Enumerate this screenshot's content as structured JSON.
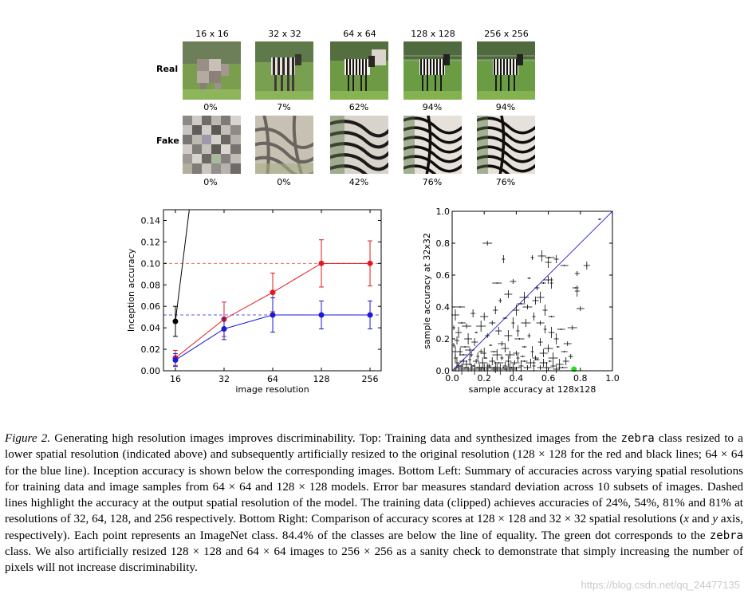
{
  "figure_top": {
    "columns": [
      "16 x 16",
      "32 x 32",
      "64 x 64",
      "128 x 128",
      "256 x 256"
    ],
    "rows": [
      {
        "label": "Real",
        "accuracies": [
          "0%",
          "7%",
          "62%",
          "94%",
          "94%"
        ]
      },
      {
        "label": "Fake",
        "accuracies": [
          "0%",
          "0%",
          "42%",
          "76%",
          "76%"
        ]
      }
    ]
  },
  "chart_data": [
    {
      "type": "line",
      "xlabel": "image resolution",
      "ylabel": "Inception accuracy",
      "x_ticks": [
        "16",
        "32",
        "64",
        "128",
        "256"
      ],
      "y_ticks": [
        "0.00",
        "0.02",
        "0.04",
        "0.06",
        "0.08",
        "0.10",
        "0.12",
        "0.14"
      ],
      "ylim": [
        0,
        0.15
      ],
      "x_scale": "log2",
      "series": [
        {
          "color": "#000000",
          "x": [
            16,
            19.5
          ],
          "y": [
            0.046,
            0.15
          ],
          "err": [
            0.014,
            0
          ]
        },
        {
          "color": "#e31a1c",
          "x": [
            16,
            32,
            64,
            128,
            256
          ],
          "y": [
            0.012,
            0.048,
            0.073,
            0.1,
            0.1
          ],
          "err": [
            0.007,
            0.016,
            0.018,
            0.022,
            0.021
          ]
        },
        {
          "color": "#1a1adb",
          "x": [
            16,
            32,
            64,
            128,
            256
          ],
          "y": [
            0.01,
            0.039,
            0.052,
            0.052,
            0.052
          ],
          "err": [
            0.006,
            0.01,
            0.016,
            0.013,
            0.013
          ]
        }
      ],
      "reference_lines": [
        {
          "color": "#e8735a",
          "y": 0.1,
          "style": "dashed"
        },
        {
          "color": "#5a5ae8",
          "y": 0.052,
          "style": "dashed"
        }
      ]
    },
    {
      "type": "scatter",
      "xlabel": "sample accuracy at 128x128",
      "ylabel": "sample accuracy at 32x32",
      "x_ticks": [
        "0.0",
        "0.2",
        "0.4",
        "0.6",
        "0.8",
        "1.0"
      ],
      "y_ticks": [
        "0.0",
        "0.2",
        "0.4",
        "0.6",
        "0.8",
        "1.0"
      ],
      "xlim": [
        0,
        1
      ],
      "ylim": [
        0,
        1
      ],
      "line_of_equality": true,
      "highlight_point": {
        "x": 0.76,
        "y": 0.01,
        "color": "#22dd22"
      },
      "points": [
        [
          0.92,
          0.95
        ],
        [
          0.78,
          0.61
        ],
        [
          0.84,
          0.66
        ],
        [
          0.56,
          0.72
        ],
        [
          0.61,
          0.71
        ],
        [
          0.5,
          0.71
        ],
        [
          0.65,
          0.7
        ],
        [
          0.6,
          0.68
        ],
        [
          0.7,
          0.66
        ],
        [
          0.22,
          0.8
        ],
        [
          0.32,
          0.7
        ],
        [
          0.78,
          0.5
        ],
        [
          0.77,
          0.52
        ],
        [
          0.8,
          0.39
        ],
        [
          0.6,
          0.57
        ],
        [
          0.62,
          0.55
        ],
        [
          0.57,
          0.55
        ],
        [
          0.38,
          0.56
        ],
        [
          0.35,
          0.48
        ],
        [
          0.45,
          0.46
        ],
        [
          0.48,
          0.58
        ],
        [
          0.53,
          0.52
        ],
        [
          0.52,
          0.44
        ],
        [
          0.55,
          0.46
        ],
        [
          0.28,
          0.55
        ],
        [
          0.3,
          0.44
        ],
        [
          0.27,
          0.38
        ],
        [
          0.4,
          0.38
        ],
        [
          0.43,
          0.42
        ],
        [
          0.47,
          0.4
        ],
        [
          0.51,
          0.34
        ],
        [
          0.58,
          0.38
        ],
        [
          0.62,
          0.34
        ],
        [
          0.55,
          0.3
        ],
        [
          0.46,
          0.3
        ],
        [
          0.38,
          0.3
        ],
        [
          0.33,
          0.33
        ],
        [
          0.25,
          0.3
        ],
        [
          0.2,
          0.34
        ],
        [
          0.18,
          0.28
        ],
        [
          0.15,
          0.24
        ],
        [
          0.22,
          0.22
        ],
        [
          0.29,
          0.25
        ],
        [
          0.35,
          0.22
        ],
        [
          0.42,
          0.2
        ],
        [
          0.48,
          0.22
        ],
        [
          0.55,
          0.18
        ],
        [
          0.62,
          0.24
        ],
        [
          0.68,
          0.26
        ],
        [
          0.75,
          0.27
        ],
        [
          0.58,
          0.26
        ],
        [
          0.65,
          0.2
        ],
        [
          0.7,
          0.12
        ],
        [
          0.72,
          0.17
        ],
        [
          0.6,
          0.14
        ],
        [
          0.5,
          0.12
        ],
        [
          0.45,
          0.15
        ],
        [
          0.4,
          0.11
        ],
        [
          0.33,
          0.14
        ],
        [
          0.28,
          0.1
        ],
        [
          0.24,
          0.16
        ],
        [
          0.18,
          0.12
        ],
        [
          0.14,
          0.18
        ],
        [
          0.1,
          0.2
        ],
        [
          0.08,
          0.15
        ],
        [
          0.12,
          0.1
        ],
        [
          0.05,
          0.12
        ],
        [
          0.04,
          0.24
        ],
        [
          0.06,
          0.3
        ],
        [
          0.09,
          0.28
        ],
        [
          0.02,
          0.08
        ],
        [
          0.03,
          0.05
        ],
        [
          0.05,
          0.03
        ],
        [
          0.07,
          0.06
        ],
        [
          0.09,
          0.04
        ],
        [
          0.11,
          0.07
        ],
        [
          0.13,
          0.03
        ],
        [
          0.15,
          0.06
        ],
        [
          0.17,
          0.02
        ],
        [
          0.19,
          0.05
        ],
        [
          0.21,
          0.08
        ],
        [
          0.23,
          0.03
        ],
        [
          0.25,
          0.06
        ],
        [
          0.27,
          0.02
        ],
        [
          0.29,
          0.05
        ],
        [
          0.31,
          0.08
        ],
        [
          0.33,
          0.03
        ],
        [
          0.35,
          0.06
        ],
        [
          0.37,
          0.02
        ],
        [
          0.39,
          0.05
        ],
        [
          0.41,
          0.08
        ],
        [
          0.43,
          0.03
        ],
        [
          0.45,
          0.06
        ],
        [
          0.47,
          0.02
        ],
        [
          0.49,
          0.05
        ],
        [
          0.51,
          0.03
        ],
        [
          0.53,
          0.07
        ],
        [
          0.55,
          0.02
        ],
        [
          0.57,
          0.05
        ],
        [
          0.59,
          0.02
        ],
        [
          0.61,
          0.06
        ],
        [
          0.63,
          0.03
        ],
        [
          0.65,
          0.01
        ],
        [
          0.67,
          0.04
        ],
        [
          0.69,
          0.02
        ],
        [
          0.02,
          0.01
        ],
        [
          0.04,
          0.02
        ],
        [
          0.06,
          0.01
        ],
        [
          0.08,
          0.02
        ],
        [
          0.1,
          0.01
        ],
        [
          0.12,
          0.02
        ],
        [
          0.14,
          0.01
        ],
        [
          0.16,
          0.02
        ],
        [
          0.18,
          0.01
        ],
        [
          0.2,
          0.02
        ],
        [
          0.22,
          0.01
        ],
        [
          0.24,
          0.02
        ],
        [
          0.26,
          0.01
        ],
        [
          0.28,
          0.02
        ],
        [
          0.3,
          0.01
        ],
        [
          0.32,
          0.02
        ],
        [
          0.34,
          0.01
        ],
        [
          0.36,
          0.02
        ],
        [
          0.38,
          0.01
        ],
        [
          0.4,
          0.02
        ],
        [
          0.01,
          0.16
        ],
        [
          0.03,
          0.19
        ],
        [
          0.02,
          0.12
        ],
        [
          0.07,
          0.1
        ],
        [
          0.11,
          0.13
        ],
        [
          0.16,
          0.09
        ],
        [
          0.2,
          0.11
        ],
        [
          0.26,
          0.12
        ],
        [
          0.31,
          0.17
        ],
        [
          0.36,
          0.1
        ],
        [
          0.41,
          0.25
        ],
        [
          0.44,
          0.09
        ],
        [
          0.52,
          0.08
        ],
        [
          0.57,
          0.11
        ],
        [
          0.63,
          0.08
        ],
        [
          0.66,
          0.15
        ],
        [
          0.74,
          0.09
        ],
        [
          0.71,
          0.06
        ],
        [
          0.02,
          0.35
        ],
        [
          0.05,
          0.4
        ],
        [
          0.01,
          0.27
        ],
        [
          0.13,
          0.36
        ]
      ]
    }
  ],
  "caption": {
    "label": "Figure 2.",
    "p1": " Generating high resolution images improves discriminability. Top: Training data and synthesized images from the ",
    "zebra1": "zebra",
    "p2": " class resized to a lower spatial resolution (indicated above) and subsequently artificially resized to the original resolution (128 × 128 for the red and black lines; 64 × 64 for the blue line). Inception accuracy is shown below the corresponding images. Bottom Left: Summary of accuracies across varying spatial resolutions for training data and image samples from 64 × 64 and 128 × 128 models. Error bar measures standard deviation across 10 subsets of images. Dashed lines highlight the accuracy at the output spatial resolution of the model. The training data (clipped) achieves accuracies of 24%, 54%, 81% and 81% at resolutions of 32, 64, 128, and 256 respectively. Bottom Right: Comparison of accuracy scores at 128 × 128 and 32 × 32 spatial resolutions (",
    "x_var": "x",
    "p3": " and ",
    "y_var": "y",
    "p4": " axis, respectively). Each point represents an ImageNet class. 84.4% of the classes are below the line of equality. The green dot corresponds to the ",
    "zebra2": "zebra",
    "p5": " class. We also artificially resized 128 × 128 and 64 × 64 images to 256 × 256 as a sanity check to demonstrate that simply increasing the number of pixels will not increase discriminability."
  },
  "watermark": "https://blog.csdn.net/qq_24477135"
}
